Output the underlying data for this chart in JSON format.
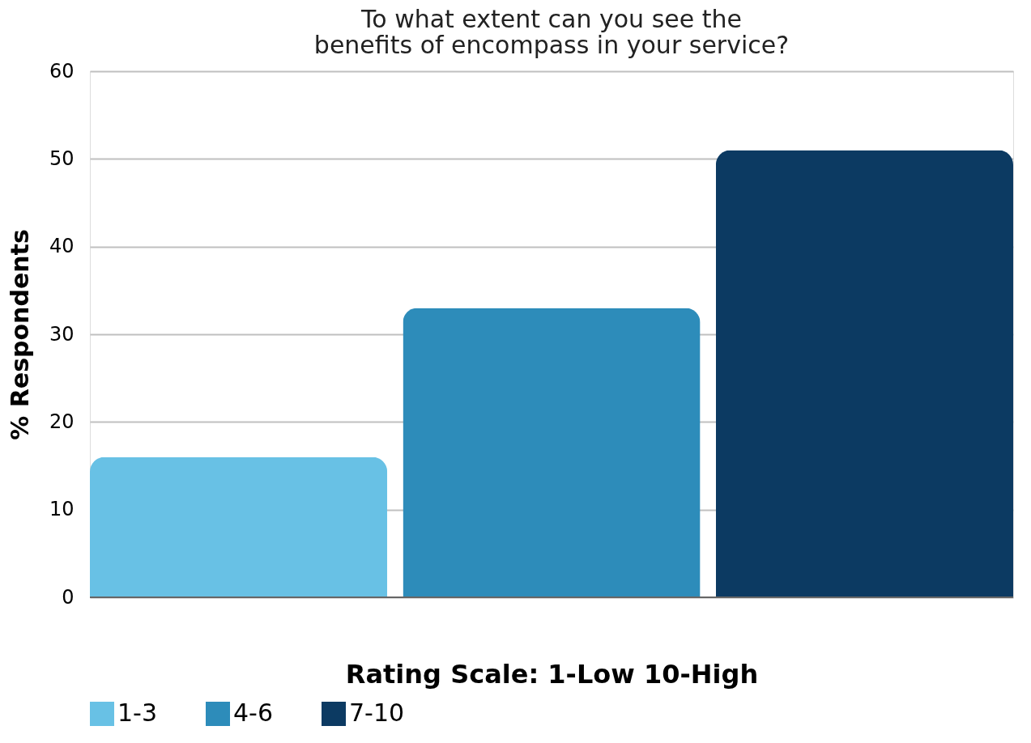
{
  "chart_data": {
    "type": "bar",
    "title": "To what extent can you see the benefits of encompass in your service?",
    "ylabel": "% Respondents",
    "xlabel": "Rating Scale: 1-Low 10-High",
    "categories": [
      null
    ],
    "series": [
      {
        "name": "1-3",
        "color": "#68c1e5",
        "values": [
          16
        ]
      },
      {
        "name": "4-6",
        "color": "#2d8cba",
        "values": [
          33
        ]
      },
      {
        "name": "7-10",
        "color": "#0c3a62",
        "values": [
          51
        ]
      }
    ],
    "ylim": [
      0,
      60
    ],
    "yticks": [
      0,
      10,
      20,
      30,
      40,
      50,
      60
    ],
    "grid": "y",
    "legend": "bottom"
  }
}
